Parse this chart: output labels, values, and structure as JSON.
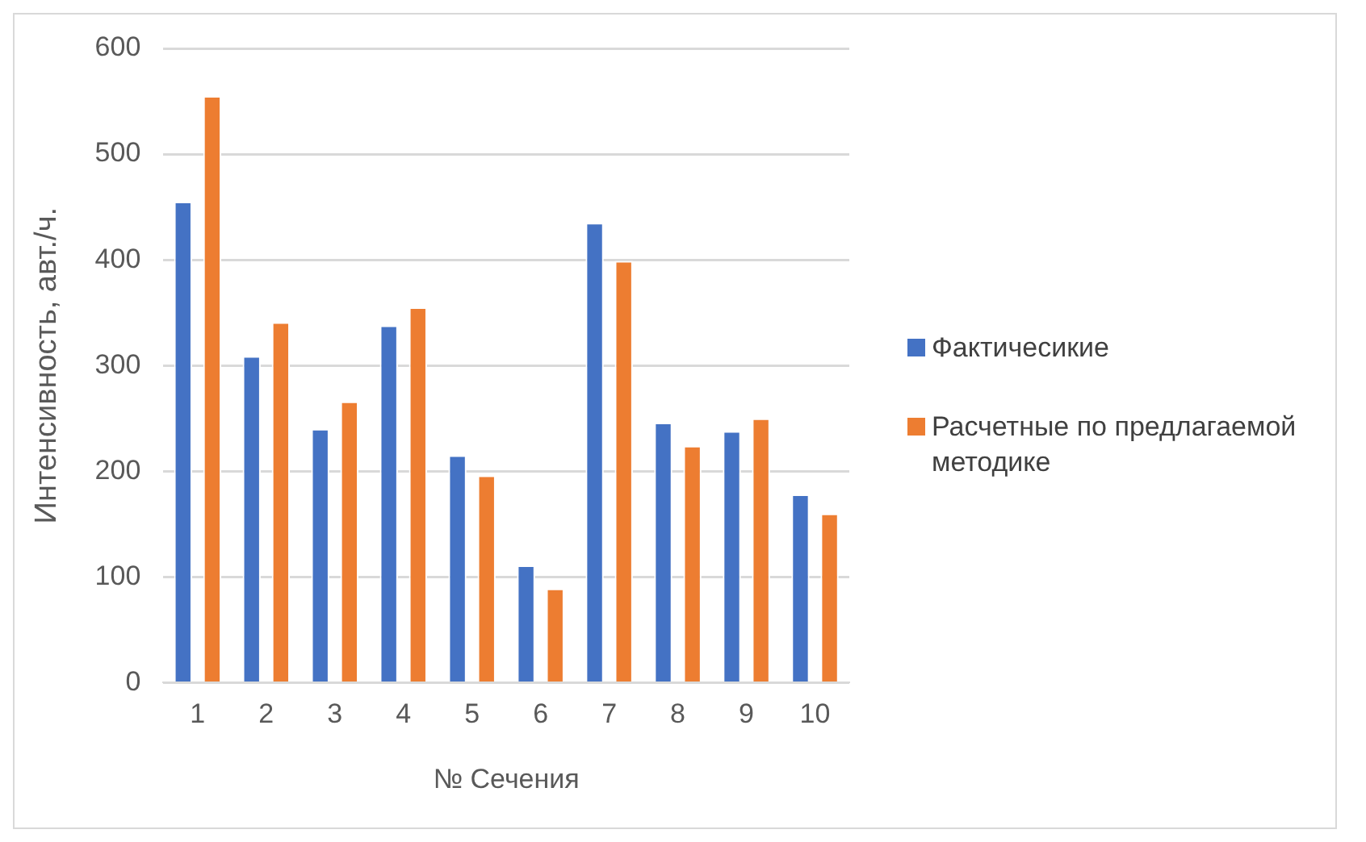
{
  "chart_data": {
    "type": "bar",
    "xlabel": "№ Сечения",
    "ylabel": "Интенсивность, авт./ч.",
    "categories": [
      "1",
      "2",
      "3",
      "4",
      "5",
      "6",
      "7",
      "8",
      "9",
      "10"
    ],
    "series": [
      {
        "name": "Фактичесикие",
        "color": "#4472c4",
        "values": [
          455,
          309,
          240,
          338,
          215,
          111,
          435,
          246,
          238,
          178
        ]
      },
      {
        "name": "Расчетные по предлагаемой методике",
        "color": "#ed7d31",
        "values": [
          555,
          341,
          266,
          355,
          196,
          89,
          399,
          224,
          250,
          160
        ]
      }
    ],
    "ylim": [
      0,
      600
    ],
    "yticks": [
      0,
      100,
      200,
      300,
      400,
      500,
      600
    ],
    "grid": "y",
    "legend": "right"
  }
}
